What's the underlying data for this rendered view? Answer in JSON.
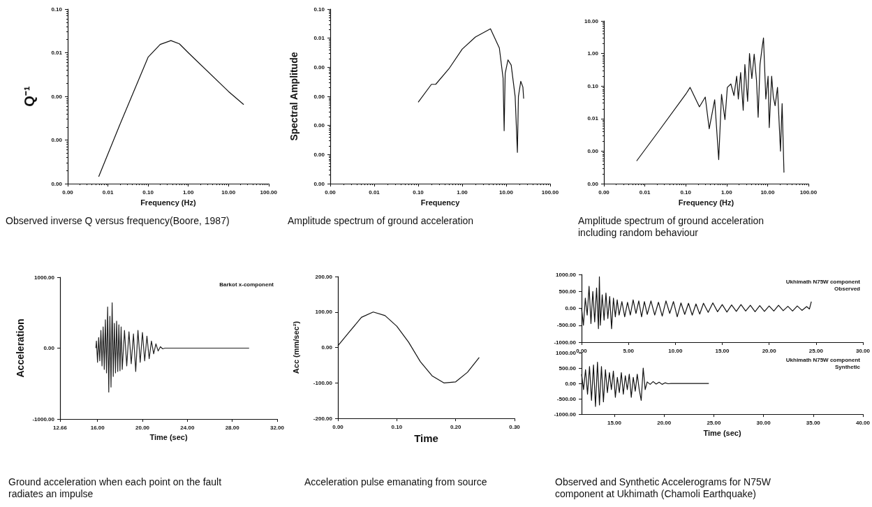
{
  "chart_data": [
    {
      "type": "line",
      "title": "Observed inverse Q versus frequency(Boore, 1987)",
      "xlabel": "Frequency (Hz)",
      "ylabel": "Q⁻¹",
      "log": "xy",
      "marker": "none",
      "xlim": [
        0.001,
        100
      ],
      "ylim": [
        1e-05,
        0.1
      ],
      "xticks": [
        {
          "value": 0.001,
          "label": "0.00"
        },
        {
          "value": 0.01,
          "label": "0.01"
        },
        {
          "value": 0.1,
          "label": "0.10"
        },
        {
          "value": 1,
          "label": "1.00"
        },
        {
          "value": 10,
          "label": "10.00"
        },
        {
          "value": 100,
          "label": "100.00"
        }
      ],
      "yticks": [
        {
          "value": 0.1,
          "label": "0.10"
        },
        {
          "value": 0.01,
          "label": "0.01"
        },
        {
          "value": 0.001,
          "label": "0.00"
        },
        {
          "value": 0.0001,
          "label": "0.00"
        },
        {
          "value": 1e-05,
          "label": "0.00"
        }
      ],
      "series": [
        {
          "color": "#111111",
          "x": [
            0.0059,
            0.02,
            0.1,
            0.2,
            0.37,
            0.6,
            1,
            10,
            24
          ],
          "values": [
            1.45e-05,
            0.00023,
            0.0079,
            0.0155,
            0.019,
            0.016,
            0.01,
            0.0013,
            0.00065
          ]
        }
      ]
    },
    {
      "type": "line",
      "title": "Amplitude spectrum of ground acceleration",
      "xlabel": "Frequency",
      "ylabel": "Spectral Amplitude",
      "log": "xy",
      "marker": "none",
      "xlim": [
        0.001,
        100
      ],
      "ylim": [
        1e-07,
        0.1
      ],
      "xticks": [
        {
          "value": 0.001,
          "label": "0.00"
        },
        {
          "value": 0.01,
          "label": "0.01"
        },
        {
          "value": 0.1,
          "label": "0.10"
        },
        {
          "value": 1,
          "label": "1.00"
        },
        {
          "value": 10,
          "label": "10.00"
        },
        {
          "value": 100,
          "label": "100.00"
        }
      ],
      "yticks": [
        {
          "value": 0.1,
          "label": "0.10"
        },
        {
          "value": 0.01,
          "label": "0.01"
        },
        {
          "value": 0.001,
          "label": "0.00"
        },
        {
          "value": 0.0001,
          "label": "0.00"
        },
        {
          "value": 1e-05,
          "label": "0.00"
        },
        {
          "value": 1e-06,
          "label": "0.00"
        },
        {
          "value": 1e-07,
          "label": "0.00"
        }
      ],
      "series": [
        {
          "color": "#111111",
          "x": [
            0.1,
            0.2,
            0.25,
            0.5,
            1,
            2,
            4.4,
            7,
            8.5,
            9,
            9.5,
            11,
            13,
            16,
            18,
            19,
            21.5,
            24,
            25
          ],
          "values": [
            6.3e-05,
            0.00026,
            0.00026,
            0.00089,
            0.0042,
            0.011,
            0.021,
            0.0046,
            0.00043,
            6.6e-06,
            0.00062,
            0.0018,
            0.0012,
            0.0001,
            1.2e-06,
            0.0001,
            0.00033,
            0.00021,
            8.4e-05
          ]
        }
      ]
    },
    {
      "type": "line",
      "title": "Amplitude spectrum of ground acceleration including random behaviour",
      "xlabel": "Frequency (Hz)",
      "log": "xy",
      "marker": "none",
      "xlim": [
        0.001,
        100
      ],
      "ylim": [
        0.0001,
        10
      ],
      "xticks": [
        {
          "value": 0.001,
          "label": "0.00"
        },
        {
          "value": 0.01,
          "label": "0.01"
        },
        {
          "value": 0.1,
          "label": "0.10"
        },
        {
          "value": 1,
          "label": "1.00"
        },
        {
          "value": 10,
          "label": "10.00"
        },
        {
          "value": 100,
          "label": "100.00"
        }
      ],
      "yticks": [
        {
          "value": 10,
          "label": "10.00"
        },
        {
          "value": 1,
          "label": "1.00"
        },
        {
          "value": 0.1,
          "label": "0.10"
        },
        {
          "value": 0.01,
          "label": "0.01"
        },
        {
          "value": 0.001,
          "label": "0.00"
        },
        {
          "value": 0.0001,
          "label": "0.00"
        }
      ],
      "series": [
        {
          "color": "#111111",
          "x": [
            0.0063,
            0.0205,
            0.1,
            0.128,
            0.216,
            0.3,
            0.375,
            0.51,
            0.64,
            0.75,
            0.91,
            1.04,
            1.27,
            1.51,
            1.76,
            1.93,
            2.2,
            2.54,
            2.79,
            3.26,
            3.62,
            4.13,
            4.71,
            5.37,
            5.89,
            6.54,
            7.45,
            7.96,
            9.08,
            10.3,
            11,
            12.6,
            13.8,
            15.3,
            17.5,
            20.7,
            22.7,
            25.2
          ],
          "values": [
            0.0005,
            0.0037,
            0.056,
            0.091,
            0.023,
            0.046,
            0.0049,
            0.038,
            0.00055,
            0.056,
            0.0094,
            0.091,
            0.116,
            0.051,
            0.2,
            0.04,
            0.26,
            0.018,
            0.46,
            0.034,
            1,
            0.17,
            0.95,
            0.15,
            0.011,
            0.46,
            1.7,
            3,
            0.04,
            0.2,
            0.0053,
            0.2,
            0.047,
            0.025,
            0.091,
            0.001,
            0.029,
            0.00022
          ]
        }
      ]
    },
    {
      "type": "line",
      "title": "Ground acceleration when each point on the fault radiates an impulse",
      "xlabel": "Time (sec)",
      "ylabel": "Acceleration",
      "annotations": [
        "Barkot x-component"
      ],
      "marker": "none",
      "xlim": [
        12.66,
        32
      ],
      "ylim": [
        -1000,
        1000
      ],
      "xticks": [
        {
          "value": 12.66,
          "label": "12.66"
        },
        {
          "value": 16,
          "label": "16.00"
        },
        {
          "value": 20,
          "label": "20.00"
        },
        {
          "value": 24,
          "label": "24.00"
        },
        {
          "value": 28,
          "label": "28.00"
        },
        {
          "value": 32,
          "label": "32.00"
        }
      ],
      "yticks": [
        {
          "value": -1000,
          "label": "-1000.00"
        },
        {
          "value": 0,
          "label": "0.00"
        },
        {
          "value": 1000,
          "label": "1000.00"
        }
      ],
      "series": [
        {
          "color": "#222222",
          "x": [
            15.85,
            15.9,
            16.0,
            16.1,
            16.2,
            16.3,
            16.4,
            16.5,
            16.6,
            16.7,
            16.8,
            16.9,
            17.0,
            17.1,
            17.2,
            17.3,
            17.4,
            17.5,
            17.6,
            17.7,
            17.8,
            17.9,
            18.0,
            18.1,
            18.2,
            18.4,
            18.6,
            18.8,
            19.0,
            19.2,
            19.4,
            19.6,
            19.8,
            20.0,
            20.2,
            20.4,
            20.6,
            20.8,
            21.0,
            21.2,
            21.4,
            21.6,
            21.8,
            22.0,
            29.5
          ],
          "values": [
            0,
            100,
            -200,
            150,
            -180,
            250,
            -250,
            300,
            -300,
            400,
            -350,
            580,
            -620,
            450,
            -550,
            640,
            -400,
            350,
            -350,
            380,
            -330,
            330,
            -320,
            300,
            -300,
            250,
            -250,
            230,
            -220,
            200,
            -330,
            250,
            -200,
            220,
            -180,
            170,
            -150,
            100,
            -80,
            60,
            -40,
            20,
            -10,
            0,
            0
          ]
        }
      ]
    },
    {
      "type": "line",
      "title": "Acceleration  pulse emanating from source",
      "xlabel": "Time",
      "ylabel": "Acc (mm/sec²)",
      "marker": "none",
      "xlim": [
        0,
        0.3
      ],
      "ylim": [
        -200,
        200
      ],
      "xticks": [
        {
          "value": 0,
          "label": "0.00"
        },
        {
          "value": 0.1,
          "label": "0.10"
        },
        {
          "value": 0.2,
          "label": "0.20"
        },
        {
          "value": 0.3,
          "label": "0.30"
        }
      ],
      "yticks": [
        {
          "value": -200,
          "label": "-200.00"
        },
        {
          "value": -100,
          "label": "-100.00"
        },
        {
          "value": 0,
          "label": "0.00"
        },
        {
          "value": 100,
          "label": "100.00"
        },
        {
          "value": 200,
          "label": "200.00"
        }
      ],
      "series": [
        {
          "color": "#111111",
          "x": [
            0,
            0.02,
            0.04,
            0.06,
            0.08,
            0.1,
            0.12,
            0.14,
            0.16,
            0.18,
            0.2,
            0.22,
            0.24
          ],
          "values": [
            5,
            45,
            85,
            100,
            90,
            60,
            15,
            -40,
            -80,
            -100,
            -97,
            -70,
            -28
          ]
        }
      ]
    },
    {
      "type": "line",
      "annotations": [
        "Ukhimath N75W component",
        "Observed"
      ],
      "marker": "none",
      "xlim": [
        0,
        30
      ],
      "ylim": [
        -1000,
        1000
      ],
      "xticks": [
        {
          "value": 0,
          "label": "0.00"
        },
        {
          "value": 5,
          "label": "5.00"
        },
        {
          "value": 10,
          "label": "10.00"
        },
        {
          "value": 15,
          "label": "15.00"
        },
        {
          "value": 20,
          "label": "20.00"
        },
        {
          "value": 25,
          "label": "25.00"
        },
        {
          "value": 30,
          "label": "30.00"
        }
      ],
      "yticks": [
        {
          "value": -1000,
          "label": "-1000.00"
        },
        {
          "value": -500,
          "label": "-500.00"
        },
        {
          "value": 0,
          "label": "0.00"
        },
        {
          "value": 500,
          "label": "500.00"
        },
        {
          "value": 1000,
          "label": "1000.00"
        }
      ],
      "series": [
        {
          "color": "#111111",
          "x": [
            0,
            0.2,
            0.4,
            0.6,
            0.8,
            1.0,
            1.2,
            1.4,
            1.6,
            1.8,
            1.9,
            2.0,
            2.2,
            2.4,
            2.6,
            2.8,
            3.0,
            3.2,
            3.4,
            3.6,
            3.8,
            4.0,
            4.3,
            4.6,
            4.9,
            5.2,
            5.5,
            5.8,
            6.1,
            6.4,
            6.7,
            7.0,
            7.4,
            7.8,
            8.2,
            8.6,
            9.0,
            9.4,
            9.8,
            10.2,
            10.6,
            11.0,
            11.4,
            11.8,
            12.2,
            12.6,
            13.0,
            13.5,
            14.0,
            14.5,
            15.0,
            15.5,
            16.0,
            16.5,
            17.0,
            17.5,
            18.0,
            18.5,
            19.0,
            19.5,
            20.0,
            20.5,
            21.0,
            21.5,
            22.0,
            22.5,
            23.0,
            23.5,
            24.0,
            24.3,
            24.5
          ],
          "values": [
            0,
            -500,
            300,
            -200,
            650,
            -450,
            500,
            -400,
            600,
            -600,
            930,
            -500,
            400,
            -350,
            450,
            -300,
            350,
            -600,
            300,
            -250,
            250,
            -200,
            200,
            -250,
            180,
            -200,
            250,
            -150,
            220,
            -250,
            200,
            -180,
            220,
            -200,
            180,
            -230,
            220,
            -150,
            200,
            -250,
            160,
            -180,
            150,
            -200,
            130,
            -170,
            150,
            -120,
            160,
            -100,
            110,
            -110,
            100,
            -90,
            110,
            -80,
            90,
            -100,
            80,
            -90,
            70,
            -80,
            90,
            -70,
            60,
            -80,
            70,
            -60,
            50,
            -20,
            200
          ]
        }
      ]
    },
    {
      "type": "line",
      "title": "Observed and Synthetic Accelerograms for N75W component at Ukhimath (Chamoli Earthquake)",
      "xlabel": "Time (sec)",
      "annotations": [
        "Ukhimath N75W component",
        "Synthetic"
      ],
      "marker": "none",
      "xlim": [
        11.7,
        40
      ],
      "ylim": [
        -1000,
        1000
      ],
      "xticks": [
        {
          "value": 15,
          "label": "15.00"
        },
        {
          "value": 20,
          "label": "20.00"
        },
        {
          "value": 25,
          "label": "25.00"
        },
        {
          "value": 30,
          "label": "30.00"
        },
        {
          "value": 35,
          "label": "35.00"
        },
        {
          "value": 40,
          "label": "40.00"
        }
      ],
      "yticks": [
        {
          "value": -1000,
          "label": "-1000.00"
        },
        {
          "value": -500,
          "label": "-500.00"
        },
        {
          "value": 0,
          "label": "0.00"
        },
        {
          "value": 500,
          "label": "500.00"
        },
        {
          "value": 1000,
          "label": "1000.00"
        }
      ],
      "series": [
        {
          "color": "#111111",
          "x": [
            11.7,
            11.9,
            12.1,
            12.3,
            12.5,
            12.7,
            12.9,
            13.1,
            13.3,
            13.5,
            13.7,
            13.9,
            14.1,
            14.3,
            14.5,
            14.7,
            14.9,
            15.1,
            15.3,
            15.5,
            15.7,
            15.9,
            16.1,
            16.3,
            16.5,
            16.7,
            16.9,
            17.1,
            17.3,
            17.5,
            17.7,
            17.9,
            18.1,
            18.3,
            18.6,
            18.9,
            19.2,
            19.5,
            19.8,
            20.1,
            20.4,
            20.7,
            21.0,
            24.5
          ],
          "values": [
            300,
            -200,
            450,
            -350,
            550,
            -550,
            600,
            -750,
            690,
            -700,
            550,
            -600,
            450,
            -300,
            350,
            -200,
            400,
            -450,
            200,
            -300,
            350,
            -350,
            250,
            -200,
            300,
            -450,
            200,
            -250,
            300,
            -200,
            -550,
            500,
            -200,
            50,
            -30,
            60,
            -20,
            40,
            -30,
            20,
            -10,
            0,
            0,
            0
          ]
        }
      ]
    }
  ]
}
